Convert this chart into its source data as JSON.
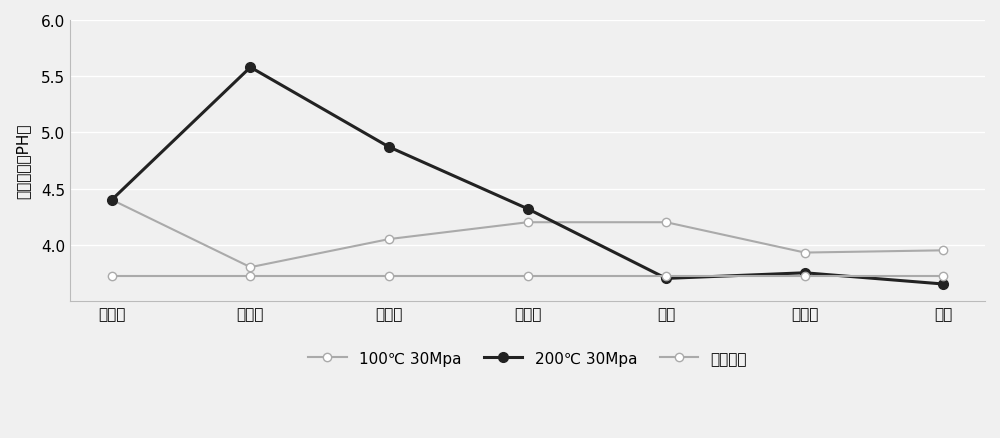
{
  "categories": [
    "花岗岩",
    "安山岩",
    "流纹岩",
    "片麻岩",
    "板岩",
    "千枚岩",
    "片岩"
  ],
  "series_100C": [
    4.4,
    3.8,
    4.05,
    4.2,
    4.2,
    3.93,
    3.95
  ],
  "series_200C": [
    4.4,
    5.58,
    4.87,
    4.32,
    3.7,
    3.75,
    3.65
  ],
  "series_initial": [
    3.72,
    3.72,
    3.72,
    3.72,
    3.72,
    3.72,
    3.72
  ],
  "color_100C": "#aaaaaa",
  "color_200C": "#222222",
  "color_initial": "#aaaaaa",
  "marker_100C": "o",
  "marker_200C": "o",
  "marker_initial": "o",
  "ylabel": "反应后溶液PH值",
  "ylim": [
    3.5,
    6.0
  ],
  "yticks": [
    3.5,
    4.0,
    4.5,
    5.0,
    5.5,
    6.0
  ],
  "legend_100C": "100℃ 30Mpa",
  "legend_200C": "200℃ 30Mpa",
  "legend_initial": "初始溶液",
  "bg_color": "#f5f5f5",
  "grid_color": "#ffffff",
  "linewidth_100C": 1.5,
  "linewidth_200C": 2.2,
  "linewidth_initial": 1.5
}
